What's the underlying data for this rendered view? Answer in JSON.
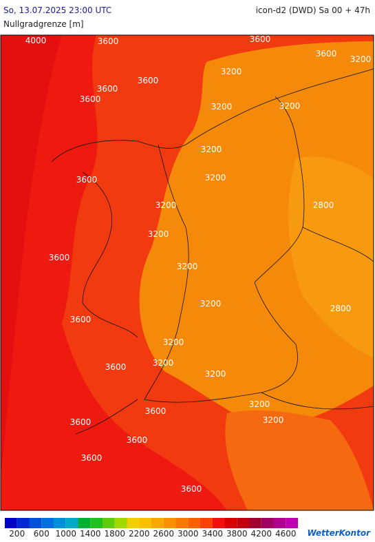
{
  "header": {
    "datetime": "So, 13.07.2025 23:00 UTC",
    "model": "icon-d2 (DWD) Sa 00 + 47h",
    "parameter": "Nullgradgrenze [m]"
  },
  "contour_labels": [
    "4000",
    "3600",
    "3600",
    "3600",
    "3200",
    "3200",
    "3600",
    "3600",
    "3600",
    "3200",
    "3200",
    "3200",
    "3600",
    "3200",
    "2800",
    "3200",
    "3200",
    "3600",
    "3200",
    "3200",
    "2800",
    "3600",
    "3200",
    "3600",
    "3200",
    "3200",
    "3200",
    "3600",
    "3600",
    "3200",
    "3600",
    "3600",
    "3600"
  ],
  "legend": {
    "ticks": [
      200,
      600,
      1000,
      1400,
      1800,
      2200,
      2600,
      3000,
      3400,
      3800,
      4200,
      4600
    ],
    "colors": [
      "#0000c8",
      "#0028d2",
      "#0050dc",
      "#0070e0",
      "#0090d8",
      "#00a8c8",
      "#00b030",
      "#20c020",
      "#60cc10",
      "#a0d800",
      "#f0d000",
      "#f8c000",
      "#f8a800",
      "#f89000",
      "#f87800",
      "#f86000",
      "#f84000",
      "#f01010",
      "#d80000",
      "#c00010",
      "#a00030",
      "#a00060",
      "#b00090",
      "#c000b0"
    ]
  },
  "logo": "WetterKontor"
}
